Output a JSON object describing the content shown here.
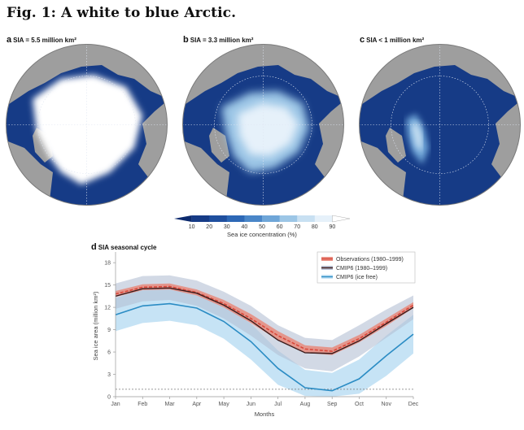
{
  "figure": {
    "title": "Fig. 1: A white to blue Arctic."
  },
  "maps": [
    {
      "letter": "a",
      "label": "SIA = 5.5 million km²"
    },
    {
      "letter": "b",
      "label": "SIA = 3.3 million km²"
    },
    {
      "letter": "c",
      "label": "SIA < 1 million km²"
    }
  ],
  "colorbar": {
    "label": "Sea ice concentration (%)",
    "ticks": [
      "10",
      "20",
      "30",
      "40",
      "50",
      "60",
      "70",
      "80",
      "90"
    ],
    "colors": [
      "#0c2a6e",
      "#163b86",
      "#1f4f9e",
      "#2d68b6",
      "#4a86c8",
      "#6fa6d8",
      "#9cc6e6",
      "#c8e0f2",
      "#e6f1fa",
      "#ffffff"
    ]
  },
  "map_colors": {
    "ocean": "#163b86",
    "land": "#9e9e9e",
    "ice": "#ffffff"
  },
  "chart_data": {
    "type": "line",
    "panel_letter": "d",
    "title": "SIA seasonal cycle",
    "xlabel": "Months",
    "ylabel": "Sea ice area (million km²)",
    "categories": [
      "Jan",
      "Feb",
      "Mar",
      "Apr",
      "May",
      "Jun",
      "Jul",
      "Aug",
      "Sep",
      "Oct",
      "Nov",
      "Dec"
    ],
    "ylim": [
      0,
      19
    ],
    "yticks": [
      0,
      3,
      6,
      9,
      12,
      15,
      18
    ],
    "reference_line": 1,
    "legend_position": "top-right",
    "series": [
      {
        "name": "Observations (1980–1999)",
        "color": "#d9473a",
        "band_color": "#e8897c",
        "values": [
          13.8,
          14.7,
          14.8,
          14.0,
          12.5,
          10.5,
          8.2,
          6.4,
          6.1,
          7.8,
          10.0,
          12.3
        ],
        "lower": [
          13.4,
          14.3,
          14.4,
          13.6,
          12.0,
          9.9,
          7.6,
          5.9,
          5.6,
          7.3,
          9.5,
          11.9
        ],
        "upper": [
          14.2,
          15.1,
          15.2,
          14.4,
          13.0,
          11.1,
          8.8,
          6.9,
          6.6,
          8.3,
          10.5,
          12.7
        ]
      },
      {
        "name": "CMIP6 (1980–1999)",
        "color": "#3a1b1b",
        "band_color": "#b4bfd4",
        "values": [
          13.5,
          14.5,
          14.6,
          13.9,
          12.3,
          10.2,
          7.6,
          5.9,
          5.8,
          7.5,
          9.8,
          12.0
        ],
        "lower": [
          11.8,
          12.8,
          13.0,
          12.2,
          10.5,
          8.2,
          5.6,
          3.8,
          3.4,
          5.4,
          7.9,
          10.4
        ],
        "upper": [
          15.2,
          16.2,
          16.3,
          15.6,
          14.1,
          12.2,
          9.6,
          7.9,
          7.6,
          9.6,
          11.7,
          13.6
        ]
      },
      {
        "name": "CMIP6 (ice free)",
        "color": "#2b8cc4",
        "band_color": "#c6e3f5",
        "values": [
          11.0,
          12.2,
          12.5,
          11.9,
          10.1,
          7.4,
          3.8,
          1.2,
          0.8,
          2.4,
          5.5,
          8.4
        ],
        "lower": [
          8.8,
          9.9,
          10.2,
          9.6,
          7.8,
          5.0,
          1.6,
          0.1,
          0.0,
          0.4,
          2.8,
          5.8
        ],
        "upper": [
          13.2,
          14.5,
          14.8,
          14.2,
          12.4,
          9.8,
          6.2,
          3.6,
          3.2,
          5.0,
          8.2,
          11.0
        ]
      }
    ]
  }
}
